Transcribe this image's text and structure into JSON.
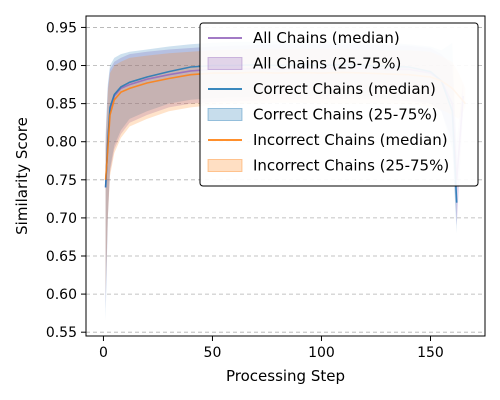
{
  "chart_data": {
    "type": "line",
    "xlabel": "Processing Step",
    "ylabel": "Similarity Score",
    "xlim": [
      -8,
      175
    ],
    "ylim": [
      0.545,
      0.965
    ],
    "xticks": [
      0,
      50,
      100,
      150
    ],
    "yticks": [
      0.55,
      0.6,
      0.65,
      0.7,
      0.75,
      0.8,
      0.85,
      0.9,
      0.95
    ],
    "grid": "y dashed",
    "legend_position": "top-right",
    "legend": [
      {
        "label": "All Chains (median)",
        "kind": "line",
        "color": "#9467bd"
      },
      {
        "label": "All Chains (25-75%)",
        "kind": "band",
        "color": "#9467bd"
      },
      {
        "label": "Correct Chains (median)",
        "kind": "line",
        "color": "#1f77b4"
      },
      {
        "label": "Correct Chains (25-75%)",
        "kind": "band",
        "color": "#1f77b4"
      },
      {
        "label": "Incorrect Chains (median)",
        "kind": "line",
        "color": "#ff7f0e"
      },
      {
        "label": "Incorrect Chains (25-75%)",
        "kind": "band",
        "color": "#ff7f0e"
      }
    ],
    "series": [
      {
        "name": "All Chains (median)",
        "color": "#9467bd",
        "x": [
          1,
          2,
          3,
          5,
          8,
          12,
          20,
          30,
          40,
          50,
          60,
          70,
          80,
          90,
          100,
          110,
          120,
          130,
          140,
          150,
          155,
          160,
          162,
          165
        ],
        "median": [
          0.74,
          0.8,
          0.84,
          0.86,
          0.87,
          0.875,
          0.882,
          0.888,
          0.893,
          0.895,
          0.895,
          0.896,
          0.895,
          0.896,
          0.896,
          0.897,
          0.896,
          0.895,
          0.895,
          0.89,
          0.88,
          0.85,
          0.75,
          0.86
        ],
        "q25": [
          0.58,
          0.7,
          0.76,
          0.79,
          0.81,
          0.825,
          0.835,
          0.845,
          0.85,
          0.852,
          0.853,
          0.854,
          0.855,
          0.855,
          0.855,
          0.856,
          0.855,
          0.855,
          0.853,
          0.85,
          0.84,
          0.8,
          0.69,
          0.84
        ],
        "q75": [
          0.8,
          0.87,
          0.895,
          0.905,
          0.91,
          0.915,
          0.918,
          0.921,
          0.923,
          0.925,
          0.926,
          0.927,
          0.928,
          0.928,
          0.928,
          0.928,
          0.927,
          0.927,
          0.926,
          0.923,
          0.915,
          0.9,
          0.8,
          0.88
        ]
      },
      {
        "name": "Correct Chains (median)",
        "color": "#1f77b4",
        "x": [
          1,
          2,
          3,
          5,
          8,
          12,
          20,
          30,
          40,
          50,
          60,
          70,
          80,
          90,
          100,
          110,
          120,
          130,
          140,
          150,
          155,
          160,
          162
        ],
        "median": [
          0.74,
          0.8,
          0.845,
          0.862,
          0.872,
          0.878,
          0.885,
          0.892,
          0.898,
          0.9,
          0.9,
          0.901,
          0.9,
          0.901,
          0.9,
          0.901,
          0.9,
          0.899,
          0.898,
          0.892,
          0.88,
          0.84,
          0.72
        ],
        "q25": [
          0.565,
          0.7,
          0.765,
          0.795,
          0.815,
          0.83,
          0.84,
          0.85,
          0.855,
          0.857,
          0.858,
          0.859,
          0.86,
          0.86,
          0.86,
          0.86,
          0.859,
          0.858,
          0.856,
          0.85,
          0.84,
          0.79,
          0.68
        ],
        "q75": [
          0.81,
          0.875,
          0.9,
          0.91,
          0.915,
          0.918,
          0.921,
          0.925,
          0.928,
          0.93,
          0.931,
          0.931,
          0.932,
          0.932,
          0.931,
          0.931,
          0.93,
          0.93,
          0.928,
          0.925,
          0.92,
          0.93,
          0.78
        ]
      },
      {
        "name": "Incorrect Chains (median)",
        "color": "#ff7f0e",
        "x": [
          1,
          2,
          3,
          5,
          8,
          12,
          20,
          30,
          40,
          50,
          60,
          70,
          80,
          90,
          100,
          110,
          120,
          130,
          140,
          150,
          155,
          160,
          163,
          166
        ],
        "median": [
          0.75,
          0.79,
          0.835,
          0.855,
          0.865,
          0.87,
          0.877,
          0.883,
          0.888,
          0.89,
          0.89,
          0.891,
          0.89,
          0.891,
          0.89,
          0.891,
          0.89,
          0.889,
          0.888,
          0.885,
          0.88,
          0.87,
          0.86,
          0.85
        ],
        "q25": [
          0.6,
          0.7,
          0.755,
          0.785,
          0.805,
          0.82,
          0.83,
          0.84,
          0.845,
          0.848,
          0.85,
          0.85,
          0.851,
          0.851,
          0.85,
          0.85,
          0.85,
          0.85,
          0.849,
          0.846,
          0.842,
          0.835,
          0.83,
          0.845
        ],
        "q75": [
          0.79,
          0.865,
          0.89,
          0.9,
          0.905,
          0.91,
          0.913,
          0.916,
          0.918,
          0.92,
          0.921,
          0.922,
          0.922,
          0.922,
          0.922,
          0.922,
          0.921,
          0.92,
          0.92,
          0.918,
          0.912,
          0.905,
          0.89,
          0.87
        ]
      }
    ]
  }
}
